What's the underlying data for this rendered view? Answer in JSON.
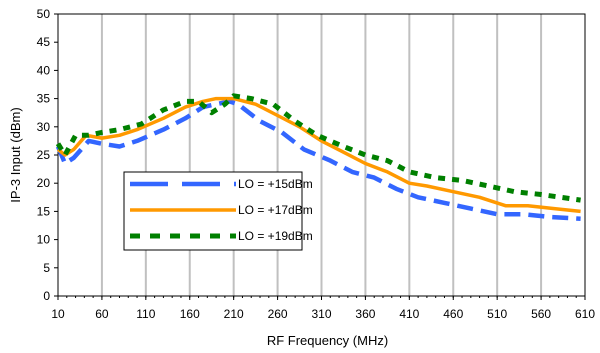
{
  "chart_data": {
    "type": "line",
    "title": "",
    "xlabel": "RF Frequency (MHz)",
    "ylabel": "IP-3 Input (dBm)",
    "xlim": [
      10,
      610
    ],
    "ylim": [
      0,
      50
    ],
    "x_ticks": [
      10,
      60,
      110,
      160,
      210,
      260,
      310,
      360,
      410,
      460,
      510,
      560,
      610
    ],
    "y_ticks": [
      0,
      5,
      10,
      15,
      20,
      25,
      30,
      35,
      40,
      45,
      50
    ],
    "grid": "vertical",
    "legend_position": "center-left",
    "series": [
      {
        "name": "LO = +15dBm",
        "color": "#3366ff",
        "style": "long-dash",
        "points": [
          [
            10,
            26.5
          ],
          [
            18,
            23.5
          ],
          [
            28,
            24.5
          ],
          [
            45,
            27.5
          ],
          [
            60,
            27
          ],
          [
            80,
            26.5
          ],
          [
            100,
            27.5
          ],
          [
            130,
            29.5
          ],
          [
            155,
            31.5
          ],
          [
            175,
            33.5
          ],
          [
            190,
            34
          ],
          [
            205,
            34.5
          ],
          [
            215,
            34
          ],
          [
            240,
            31
          ],
          [
            265,
            29
          ],
          [
            290,
            26
          ],
          [
            320,
            24
          ],
          [
            345,
            22
          ],
          [
            370,
            21
          ],
          [
            395,
            19
          ],
          [
            420,
            17.5
          ],
          [
            450,
            16.5
          ],
          [
            480,
            15.5
          ],
          [
            510,
            14.5
          ],
          [
            540,
            14.5
          ],
          [
            570,
            14
          ],
          [
            605,
            13.7
          ]
        ]
      },
      {
        "name": "LO = +17dBm",
        "color": "#ff9900",
        "style": "solid",
        "points": [
          [
            10,
            26
          ],
          [
            18,
            25
          ],
          [
            28,
            26
          ],
          [
            42,
            28.5
          ],
          [
            60,
            28
          ],
          [
            80,
            28.5
          ],
          [
            100,
            29.5
          ],
          [
            130,
            31.5
          ],
          [
            155,
            33.5
          ],
          [
            175,
            34.5
          ],
          [
            190,
            35
          ],
          [
            210,
            35
          ],
          [
            235,
            34
          ],
          [
            260,
            32
          ],
          [
            285,
            30
          ],
          [
            310,
            27.5
          ],
          [
            335,
            25.5
          ],
          [
            360,
            23.5
          ],
          [
            385,
            22
          ],
          [
            410,
            20
          ],
          [
            430,
            19.5
          ],
          [
            460,
            18.5
          ],
          [
            490,
            17.5
          ],
          [
            520,
            16
          ],
          [
            545,
            16
          ],
          [
            575,
            15.5
          ],
          [
            605,
            15
          ]
        ]
      },
      {
        "name": "LO = +19dBm",
        "color": "#008000",
        "style": "short-dash",
        "points": [
          [
            10,
            27
          ],
          [
            18,
            25
          ],
          [
            30,
            28.5
          ],
          [
            45,
            28.5
          ],
          [
            60,
            29
          ],
          [
            80,
            29.5
          ],
          [
            105,
            30.5
          ],
          [
            130,
            33
          ],
          [
            155,
            34.5
          ],
          [
            170,
            34.5
          ],
          [
            185,
            32.5
          ],
          [
            200,
            34
          ],
          [
            210,
            35.5
          ],
          [
            230,
            35
          ],
          [
            255,
            34
          ],
          [
            280,
            31
          ],
          [
            305,
            28.5
          ],
          [
            335,
            26.5
          ],
          [
            360,
            25
          ],
          [
            385,
            24
          ],
          [
            410,
            22
          ],
          [
            440,
            21
          ],
          [
            470,
            20.5
          ],
          [
            500,
            19.5
          ],
          [
            530,
            18.5
          ],
          [
            560,
            18
          ],
          [
            605,
            17
          ]
        ]
      }
    ]
  }
}
